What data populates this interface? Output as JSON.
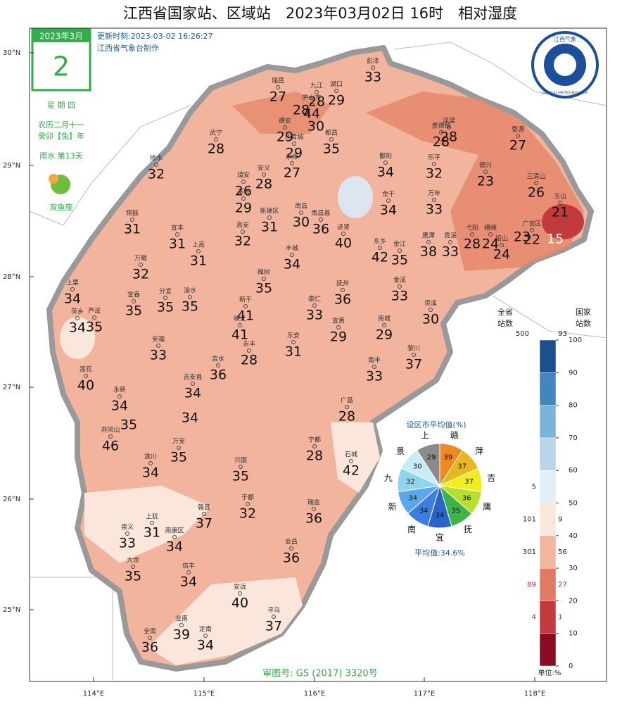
{
  "title": "江西省国家站、区域站　2023年03月02日 16时　相对湿度",
  "update_time": "更新时刻:2023-03-02 16:26:27",
  "producer": "江西省气象台制作",
  "calendar": {
    "month": "2023年3月",
    "day": "2",
    "weekday": "星 期 四",
    "lunar_date": "农历二月十一",
    "lunar_year": "癸卯【兔】年",
    "solar_term": "雨水 第13天",
    "zodiac": "双鱼座"
  },
  "logo": {
    "name": "江西气象",
    "name_en": "JIANGXI METEOROLOGY"
  },
  "lat_ticks": [
    "30°N",
    "29°N",
    "28°N",
    "27°N",
    "26°N",
    "25°N"
  ],
  "lon_ticks": [
    "114°E",
    "115°E",
    "116°E",
    "117°E",
    "118°E"
  ],
  "stations": [
    {
      "name": "彭泽",
      "value": 33
    },
    {
      "name": "瑞昌",
      "value": 27
    },
    {
      "name": "九江",
      "value": 28
    },
    {
      "name": "湖口",
      "value": 29
    },
    {
      "name": null,
      "value": 28
    },
    {
      "name": "庐山市",
      "value": 44
    },
    {
      "name": "德安",
      "value": 29
    },
    {
      "name": null,
      "value": 30
    },
    {
      "name": "都昌",
      "value": 35
    },
    {
      "name": "共青城",
      "value": 29
    },
    {
      "name": "武宁",
      "value": 28
    },
    {
      "name": "修水",
      "value": 32
    },
    {
      "name": "永修",
      "value": 27
    },
    {
      "name": "安义",
      "value": 28
    },
    {
      "name": "靖安",
      "value": 26
    },
    {
      "name": "奉新",
      "value": 29
    },
    {
      "name": "新建区",
      "value": 31
    },
    {
      "name": "南昌",
      "value": 30
    },
    {
      "name": "南昌县",
      "value": 36
    },
    {
      "name": "进贤",
      "value": 40
    },
    {
      "name": "鄱阳",
      "value": 34
    },
    {
      "name": "浮梁",
      "value": 28
    },
    {
      "name": "景德镇",
      "value": 28
    },
    {
      "name": "婺源",
      "value": 27
    },
    {
      "name": "乐平",
      "value": 32
    },
    {
      "name": "德兴",
      "value": 23
    },
    {
      "name": "三清山",
      "value": 26
    },
    {
      "name": "玉山",
      "value": 21
    },
    {
      "name": "余干",
      "value": 34
    },
    {
      "name": "万年",
      "value": 33
    },
    {
      "name": null,
      "value": 23
    },
    {
      "name": "广信区",
      "value": 22
    },
    {
      "name": null,
      "value": 15
    },
    {
      "name": "弋阳",
      "value": 28
    },
    {
      "name": "横峰",
      "value": 24
    },
    {
      "name": "铅山",
      "value": 24
    },
    {
      "name": "贵溪",
      "value": 33
    },
    {
      "name": "鹰潭",
      "value": 38
    },
    {
      "name": "余江",
      "value": 35
    },
    {
      "name": "东乡",
      "value": 42
    },
    {
      "name": "铜鼓",
      "value": 31
    },
    {
      "name": "宜丰",
      "value": 31
    },
    {
      "name": "上高",
      "value": 31
    },
    {
      "name": "高安",
      "value": 32
    },
    {
      "name": "丰城",
      "value": 34
    },
    {
      "name": "万载",
      "value": 32
    },
    {
      "name": "樟树",
      "value": 35
    },
    {
      "name": "抚州",
      "value": 36
    },
    {
      "name": "金溪",
      "value": 33
    },
    {
      "name": "资溪",
      "value": 30
    },
    {
      "name": "上栗",
      "value": 34
    },
    {
      "name": "萍乡",
      "value": 34
    },
    {
      "name": "芦溪",
      "value": 35
    },
    {
      "name": "宜春",
      "value": 35
    },
    {
      "name": "分宜",
      "value": 35
    },
    {
      "name": "渝水",
      "value": 35
    },
    {
      "name": "新干",
      "value": 41
    },
    {
      "name": "峡江",
      "value": 41
    },
    {
      "name": "崇仁",
      "value": 33
    },
    {
      "name": "宜黄",
      "value": 29
    },
    {
      "name": "南城",
      "value": 29
    },
    {
      "name": "乐安",
      "value": 31
    },
    {
      "name": "永丰",
      "value": 28
    },
    {
      "name": "安福",
      "value": 33
    },
    {
      "name": "莲花",
      "value": 40
    },
    {
      "name": "黎川",
      "value": 37
    },
    {
      "name": "南丰",
      "value": 33
    },
    {
      "name": "吉水",
      "value": 36
    },
    {
      "name": "吉安县",
      "value": 34
    },
    {
      "name": null,
      "value": 34
    },
    {
      "name": "永新",
      "value": 34
    },
    {
      "name": null,
      "value": 35
    },
    {
      "name": "井冈山",
      "value": 46
    },
    {
      "name": "万安",
      "value": 35
    },
    {
      "name": "遂川",
      "value": 34
    },
    {
      "name": "兴国",
      "value": 35
    },
    {
      "name": "宁都",
      "value": 28
    },
    {
      "name": "广昌",
      "value": 28
    },
    {
      "name": "石城",
      "value": 42
    },
    {
      "name": "于都",
      "value": 32
    },
    {
      "name": "瑞金",
      "value": 36
    },
    {
      "name": "赣县",
      "value": 37
    },
    {
      "name": "上犹",
      "value": 31
    },
    {
      "name": "南康区",
      "value": 34
    },
    {
      "name": "崇义",
      "value": 33
    },
    {
      "name": "大余",
      "value": 35
    },
    {
      "name": "信丰",
      "value": 34
    },
    {
      "name": "会昌",
      "value": 36
    },
    {
      "name": "安远",
      "value": 40
    },
    {
      "name": "寻乌",
      "value": 37
    },
    {
      "name": "龙南",
      "value": 39
    },
    {
      "name": "全南",
      "value": 36
    },
    {
      "name": "定南",
      "value": 34
    }
  ],
  "legend": {
    "province_header": [
      "全省",
      "站数"
    ],
    "national_header": [
      "国家",
      "站数"
    ],
    "province_total": 500,
    "national_total": 93,
    "ticks": [
      0,
      10,
      20,
      30,
      40,
      50,
      60,
      70,
      80,
      90,
      100
    ],
    "colors": [
      "#8c0a22",
      "#c23a3c",
      "#e27a62",
      "#f3b59d",
      "#fbe6dc",
      "#e3eef6",
      "#b8d5ea",
      "#7bb3da",
      "#4484c2",
      "#1b4f8d"
    ],
    "province_counts": [
      null,
      4,
      89,
      301,
      101,
      5,
      null,
      null,
      null,
      null
    ],
    "national_counts": [
      null,
      1,
      27,
      56,
      9,
      null,
      null,
      null,
      null,
      null
    ],
    "unit": "单位:%"
  },
  "pie": {
    "title": "设区市平均值(%)",
    "average": "平均值:34.6%",
    "cities": [
      {
        "name": "上",
        "value": 29
      },
      {
        "name": "赣",
        "value": 39
      },
      {
        "name": "萍",
        "value": 37
      },
      {
        "name": "吉",
        "value": 37
      },
      {
        "name": "鹰",
        "value": 36
      },
      {
        "name": "抚",
        "value": 35
      },
      {
        "name": "宜",
        "value": 34
      },
      {
        "name": "南",
        "value": 34
      },
      {
        "name": "新",
        "value": 34
      },
      {
        "name": "九",
        "value": 32
      },
      {
        "name": "景",
        "value": 30
      }
    ]
  },
  "approval": "审图号: GS (2017) 3320号"
}
